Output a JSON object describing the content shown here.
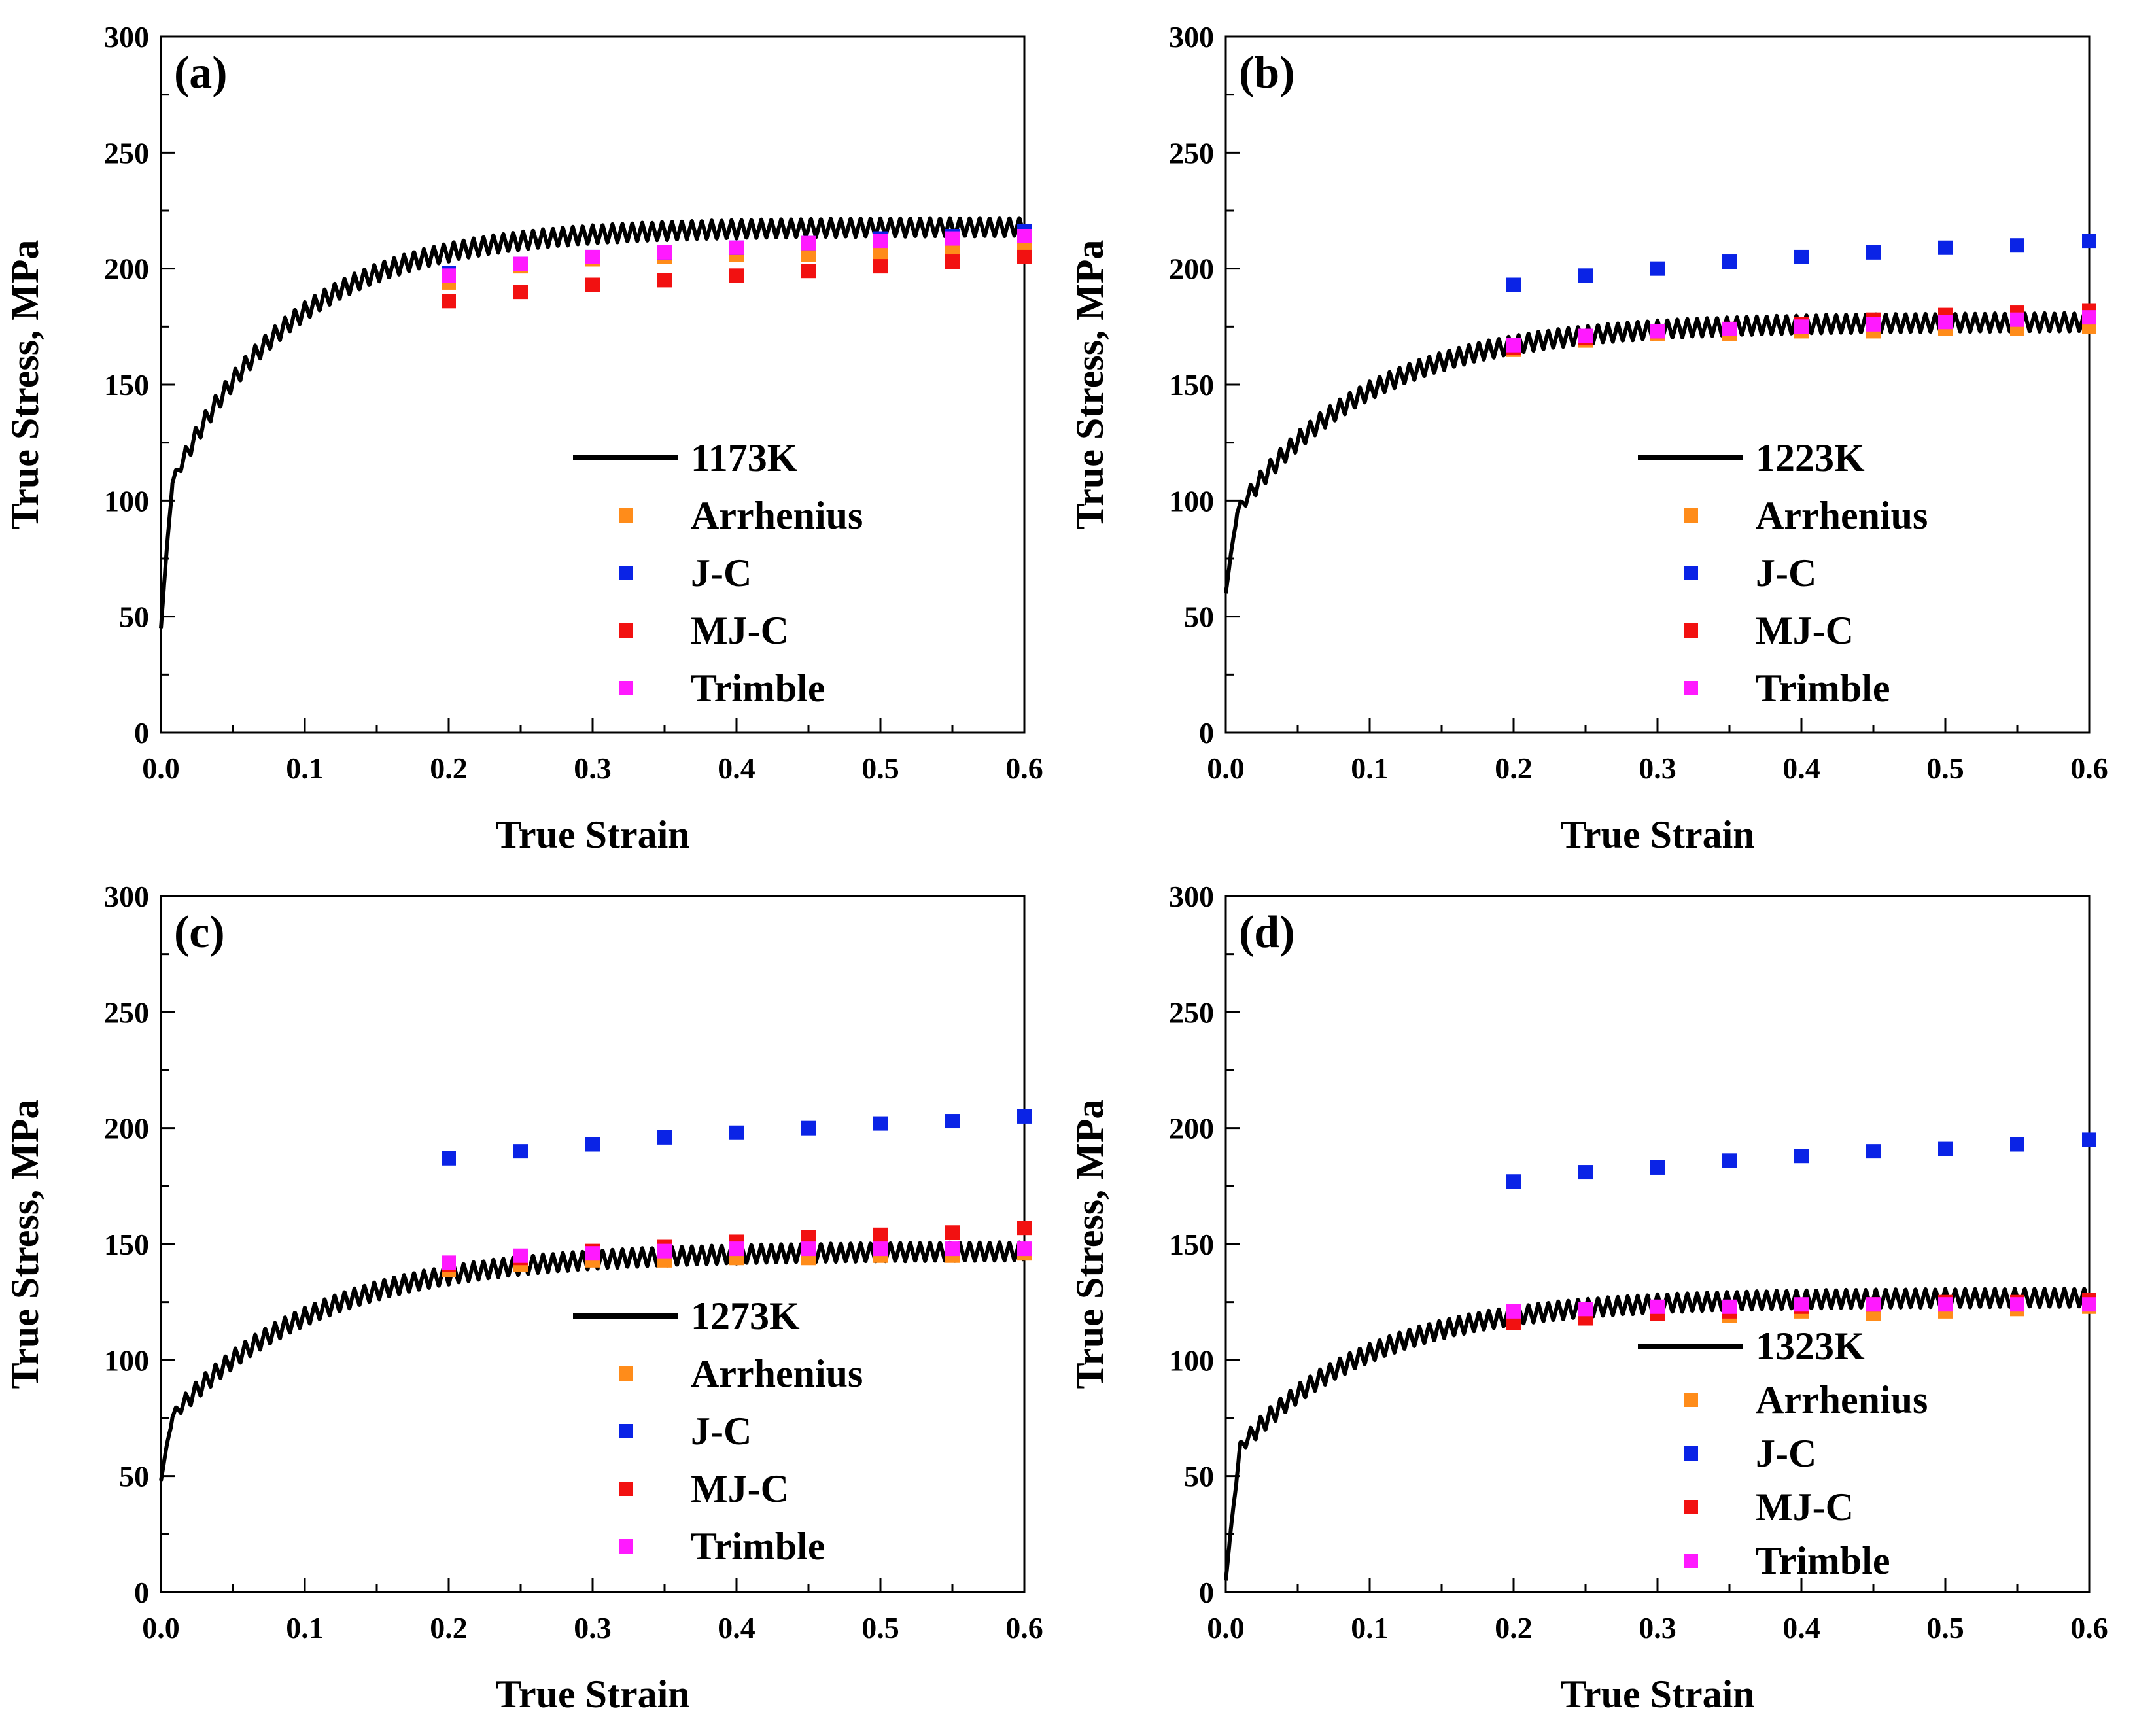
{
  "chart_data": [
    {
      "type": "scatter",
      "panel_label": "(a)",
      "xlabel": "True Strain",
      "ylabel": "True Stress, MPa",
      "xlim": [
        0,
        0.6
      ],
      "ylim": [
        0,
        300
      ],
      "xticks": [
        "0.0",
        "0.1",
        "0.2",
        "0.3",
        "0.4",
        "0.5",
        "0.6"
      ],
      "yticks": [
        "0",
        "50",
        "100",
        "150",
        "200",
        "250",
        "300"
      ],
      "legend_position": "lower-right",
      "experimental": {
        "name": "1173K",
        "sigma0": 45,
        "sigma_sat": 218,
        "k": 12,
        "sigma_jump": 52,
        "jump_eps": 0.008,
        "osc_amp": 4
      },
      "series": [
        {
          "name": "Arrhenius",
          "color": "#ff8c1a",
          "x": [
            0.2,
            0.25,
            0.3,
            0.35,
            0.4,
            0.45,
            0.5,
            0.55,
            0.6
          ],
          "y": [
            194,
            201,
            204,
            205,
            206,
            206,
            207,
            208,
            209
          ]
        },
        {
          "name": "J-C",
          "color": "#0a23e6",
          "x": [
            0.2,
            0.25,
            0.3,
            0.35,
            0.4,
            0.45,
            0.5,
            0.55,
            0.6
          ],
          "y": [
            198,
            202,
            205,
            207,
            209,
            211,
            213,
            214,
            216
          ]
        },
        {
          "name": "MJ-C",
          "color": "#f21111",
          "x": [
            0.2,
            0.25,
            0.3,
            0.35,
            0.4,
            0.45,
            0.5,
            0.55,
            0.6
          ],
          "y": [
            186,
            190,
            193,
            195,
            197,
            199,
            201,
            203,
            205
          ]
        },
        {
          "name": "Trimble",
          "color": "#ff1aff",
          "x": [
            0.2,
            0.25,
            0.3,
            0.35,
            0.4,
            0.45,
            0.5,
            0.55,
            0.6
          ],
          "y": [
            197,
            202,
            205,
            207,
            209,
            211,
            212,
            213,
            214
          ]
        }
      ]
    },
    {
      "type": "scatter",
      "panel_label": "(b)",
      "xlabel": "True Strain",
      "ylabel": "True Stress, MPa",
      "xlim": [
        0,
        0.6
      ],
      "ylim": [
        0,
        300
      ],
      "xticks": [
        "0.0",
        "0.1",
        "0.2",
        "0.3",
        "0.4",
        "0.5",
        "0.6"
      ],
      "yticks": [
        "0",
        "50",
        "100",
        "150",
        "200",
        "250",
        "300"
      ],
      "legend_position": "lower-right",
      "experimental": {
        "name": "1223K",
        "sigma0": 60,
        "sigma_sat": 177,
        "k": 11,
        "sigma_jump": 28,
        "jump_eps": 0.008,
        "osc_amp": 4
      },
      "series": [
        {
          "name": "Arrhenius",
          "color": "#ff8c1a",
          "x": [
            0.2,
            0.25,
            0.3,
            0.35,
            0.4,
            0.45,
            0.5,
            0.55,
            0.6
          ],
          "y": [
            165,
            169,
            172,
            172,
            173,
            173,
            174,
            174,
            175
          ]
        },
        {
          "name": "J-C",
          "color": "#0a23e6",
          "x": [
            0.2,
            0.25,
            0.3,
            0.35,
            0.4,
            0.45,
            0.5,
            0.55,
            0.6
          ],
          "y": [
            193,
            197,
            200,
            203,
            205,
            207,
            209,
            210,
            212
          ]
        },
        {
          "name": "MJ-C",
          "color": "#f21111",
          "x": [
            0.2,
            0.25,
            0.3,
            0.35,
            0.4,
            0.45,
            0.5,
            0.55,
            0.6
          ],
          "y": [
            166,
            170,
            173,
            174,
            176,
            178,
            180,
            181,
            182
          ]
        },
        {
          "name": "Trimble",
          "color": "#ff1aff",
          "x": [
            0.2,
            0.25,
            0.3,
            0.35,
            0.4,
            0.45,
            0.5,
            0.55,
            0.6
          ],
          "y": [
            167,
            171,
            173,
            174,
            175,
            176,
            177,
            178,
            179
          ]
        }
      ]
    },
    {
      "type": "scatter",
      "panel_label": "(c)",
      "xlabel": "True Strain",
      "ylabel": "True Stress, MPa",
      "xlim": [
        0,
        0.6
      ],
      "ylim": [
        0,
        300
      ],
      "xticks": [
        "0.0",
        "0.1",
        "0.2",
        "0.3",
        "0.4",
        "0.5",
        "0.6"
      ],
      "yticks": [
        "0",
        "50",
        "100",
        "150",
        "200",
        "250",
        "300"
      ],
      "legend_position": "lower-right",
      "experimental": {
        "name": "1273K",
        "sigma0": 48,
        "sigma_sat": 147,
        "k": 10,
        "sigma_jump": 22,
        "jump_eps": 0.008,
        "osc_amp": 4
      },
      "series": [
        {
          "name": "Arrhenius",
          "color": "#ff8c1a",
          "x": [
            0.2,
            0.25,
            0.3,
            0.35,
            0.4,
            0.45,
            0.5,
            0.55,
            0.6
          ],
          "y": [
            139,
            141,
            143,
            143,
            144,
            144,
            145,
            145,
            146
          ]
        },
        {
          "name": "J-C",
          "color": "#0a23e6",
          "x": [
            0.2,
            0.25,
            0.3,
            0.35,
            0.4,
            0.45,
            0.5,
            0.55,
            0.6
          ],
          "y": [
            187,
            190,
            193,
            196,
            198,
            200,
            202,
            203,
            205
          ]
        },
        {
          "name": "MJ-C",
          "color": "#f21111",
          "x": [
            0.2,
            0.25,
            0.3,
            0.35,
            0.4,
            0.45,
            0.5,
            0.55,
            0.6
          ],
          "y": [
            141,
            144,
            147,
            149,
            151,
            153,
            154,
            155,
            157
          ]
        },
        {
          "name": "Trimble",
          "color": "#ff1aff",
          "x": [
            0.2,
            0.25,
            0.3,
            0.35,
            0.4,
            0.45,
            0.5,
            0.55,
            0.6
          ],
          "y": [
            142,
            145,
            146,
            147,
            148,
            148,
            148,
            148,
            148
          ]
        }
      ]
    },
    {
      "type": "scatter",
      "panel_label": "(d)",
      "xlabel": "True Strain",
      "ylabel": "True Stress, MPa",
      "xlim": [
        0,
        0.6
      ],
      "ylim": [
        0,
        300
      ],
      "xticks": [
        "0.0",
        "0.1",
        "0.2",
        "0.3",
        "0.4",
        "0.5",
        "0.6"
      ],
      "yticks": [
        "0",
        "50",
        "100",
        "150",
        "200",
        "250",
        "300"
      ],
      "legend_position": "lower-right",
      "experimental": {
        "name": "1323K",
        "sigma0": 5,
        "sigma_sat": 127,
        "k": 11,
        "sigma_jump": 50,
        "jump_eps": 0.01,
        "osc_amp": 4
      },
      "series": [
        {
          "name": "Arrhenius",
          "color": "#ff8c1a",
          "x": [
            0.2,
            0.25,
            0.3,
            0.35,
            0.4,
            0.45,
            0.5,
            0.55,
            0.6
          ],
          "y": [
            118,
            119,
            120,
            119,
            121,
            120,
            121,
            122,
            123
          ]
        },
        {
          "name": "J-C",
          "color": "#0a23e6",
          "x": [
            0.2,
            0.25,
            0.3,
            0.35,
            0.4,
            0.45,
            0.5,
            0.55,
            0.6
          ],
          "y": [
            177,
            181,
            183,
            186,
            188,
            190,
            191,
            193,
            195
          ]
        },
        {
          "name": "MJ-C",
          "color": "#f21111",
          "x": [
            0.2,
            0.25,
            0.3,
            0.35,
            0.4,
            0.45,
            0.5,
            0.55,
            0.6
          ],
          "y": [
            116,
            118,
            120,
            121,
            123,
            124,
            125,
            125,
            126
          ]
        },
        {
          "name": "Trimble",
          "color": "#ff1aff",
          "x": [
            0.2,
            0.25,
            0.3,
            0.35,
            0.4,
            0.45,
            0.5,
            0.55,
            0.6
          ],
          "y": [
            121,
            122,
            123,
            123,
            124,
            124,
            124,
            124,
            124
          ]
        }
      ]
    }
  ]
}
